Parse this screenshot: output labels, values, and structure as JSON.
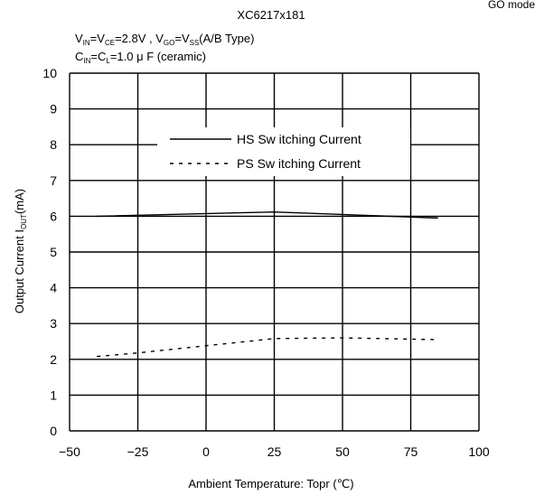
{
  "header": {
    "corner_text": "GO mode",
    "model": "XC6217x181"
  },
  "conditions": {
    "line1": {
      "v_in": "V",
      "in_sub": "IN",
      "eq1": "=V",
      "ce_sub": "CE",
      "mid": "=2.8V , V",
      "go_sub": "GO",
      "eq2": "=V",
      "ss_sub": "SS",
      "tail": "(A/B Type)"
    },
    "line2": {
      "c_in": "C",
      "in_sub": "IN",
      "eq": "=C",
      "l_sub": "L",
      "tail": "=1.0 μ F (ceramic)"
    }
  },
  "chart_data": {
    "type": "line",
    "xlabel": "Ambient Temperature: Topr (℃)",
    "ylabel": {
      "main": "Output Current I",
      "sub": "OUT",
      "unit": "(mA)"
    },
    "xlim": [
      -50,
      100
    ],
    "ylim": [
      0,
      10
    ],
    "xticks": [
      -50,
      -25,
      0,
      25,
      50,
      75,
      100
    ],
    "xtick_labels": [
      "−50",
      "−25",
      "0",
      "25",
      "50",
      "75",
      "100"
    ],
    "yticks": [
      0,
      1,
      2,
      3,
      4,
      5,
      6,
      7,
      8,
      9,
      10
    ],
    "grid": true,
    "legend_position": "upper-right",
    "series": [
      {
        "name": "HS Sw itching Current",
        "style": "solid",
        "x": [
          -40,
          25,
          85
        ],
        "y": [
          6.0,
          6.12,
          5.95
        ]
      },
      {
        "name": "PS Sw itching Current",
        "style": "dashed",
        "x": [
          -40,
          -25,
          0,
          25,
          50,
          85
        ],
        "y": [
          2.08,
          2.18,
          2.38,
          2.58,
          2.6,
          2.55
        ]
      }
    ]
  }
}
